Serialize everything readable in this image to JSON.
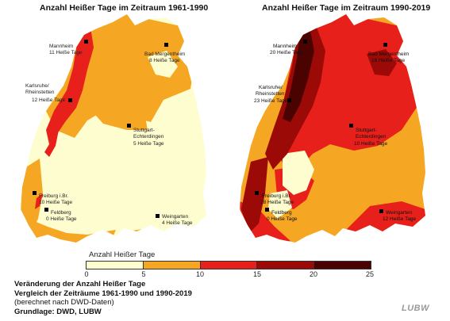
{
  "maps": {
    "left": {
      "title": "Anzahl Heißer Tage im Zeitraum 1961-1990",
      "stations": [
        {
          "name": "Mannheim",
          "value": "11 Heiße Tage"
        },
        {
          "name": "Bad Mergentheim",
          "value": "8 Heiße Tage"
        },
        {
          "name": "Karlsruhe/\nRheinstetten",
          "value": "12 Heiße Tage"
        },
        {
          "name": "Stuttgart-\nEchterdingen",
          "value": "5 Heiße Tage"
        },
        {
          "name": "Freiburg i.Br.",
          "value": "10 Heiße Tage"
        },
        {
          "name": "Feldberg",
          "value": "0 Heiße Tage"
        },
        {
          "name": "Weingarten",
          "value": "4 Heiße Tage"
        }
      ]
    },
    "right": {
      "title": "Anzahl Heißer Tage im Zeitraum 1990-2019",
      "stations": [
        {
          "name": "Mannheim",
          "value": "20 Heiße Tage"
        },
        {
          "name": "Bad Mergentheim",
          "value": "16 Heiße Tage"
        },
        {
          "name": "Karlsruhe/\nRheinstetten",
          "value": "23 Heiße Tage"
        },
        {
          "name": "Stuttgart-\nEchterdingen",
          "value": "10 Heiße Tage"
        },
        {
          "name": "Freiburg i.Br.",
          "value": "18 Heiße Tage"
        },
        {
          "name": "Feldberg",
          "value": "0 Heiße Tage"
        },
        {
          "name": "Weingarten",
          "value": "12 Heiße Tage"
        }
      ]
    }
  },
  "legend": {
    "title": "Anzahl Heißer Tage",
    "ticks": [
      "0",
      "5",
      "10",
      "15",
      "20",
      "25"
    ],
    "colors": [
      "#fefdd0",
      "#f5a623",
      "#e8201b",
      "#9b0a06",
      "#4b0302"
    ]
  },
  "caption": {
    "line1": "Veränderung der Anzahl Heißer Tage",
    "line2": "Vergleich der Zeiträume 1961-1990 und 1990-2019",
    "line3": "(berechnet nach DWD-Daten)",
    "line4": "Grundlage: DWD, LUBW"
  },
  "logo": "LUBW"
}
